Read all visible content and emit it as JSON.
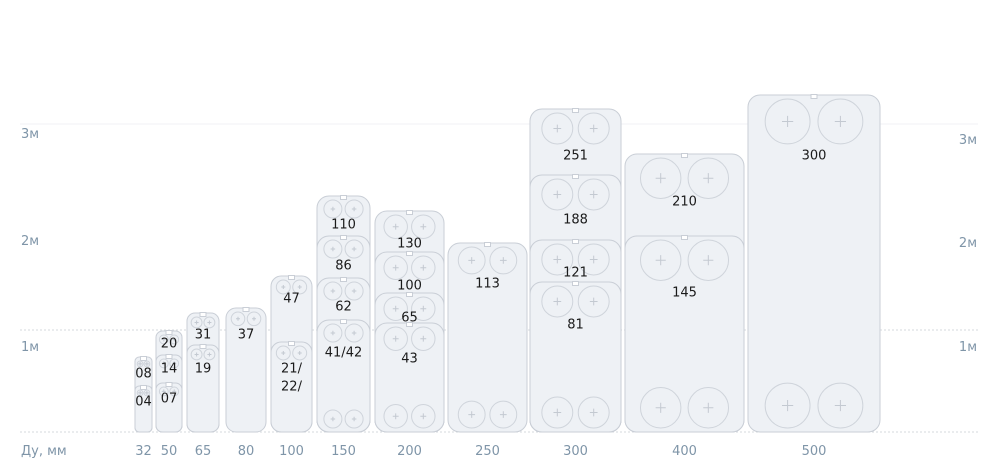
{
  "y_axis_left": [
    "3м",
    "2м",
    "1м"
  ],
  "y_axis_right": [
    "3м",
    "2м",
    "1м"
  ],
  "x_axis_label": "Ду, мм",
  "columns": [
    {
      "dn": "32",
      "plates": [
        [
          "08"
        ],
        [
          "04"
        ]
      ]
    },
    {
      "dn": "50",
      "plates": [
        [
          "20"
        ],
        [
          "14"
        ],
        [
          "07"
        ]
      ]
    },
    {
      "dn": "65",
      "plates": [
        [
          "31"
        ],
        [
          "19"
        ]
      ]
    },
    {
      "dn": "80",
      "plates": [
        [
          "37"
        ]
      ]
    },
    {
      "dn": "100",
      "plates": [
        [
          "47"
        ],
        [
          "21/",
          "22/"
        ]
      ]
    },
    {
      "dn": "150",
      "plates": [
        [
          "110"
        ],
        [
          "86"
        ],
        [
          "62"
        ],
        [
          "41/42"
        ]
      ]
    },
    {
      "dn": "200",
      "plates": [
        [
          "130"
        ],
        [
          "100"
        ],
        [
          "65"
        ],
        [
          "43"
        ]
      ]
    },
    {
      "dn": "250",
      "plates": [
        [
          "113"
        ]
      ]
    },
    {
      "dn": "300",
      "plates": [
        [
          "251"
        ],
        [
          "188"
        ],
        [
          "121"
        ],
        [
          "81"
        ]
      ]
    },
    {
      "dn": "400",
      "plates": [
        [
          "210"
        ],
        [
          "145"
        ]
      ]
    },
    {
      "dn": "500",
      "plates": [
        [
          "300"
        ]
      ]
    }
  ]
}
